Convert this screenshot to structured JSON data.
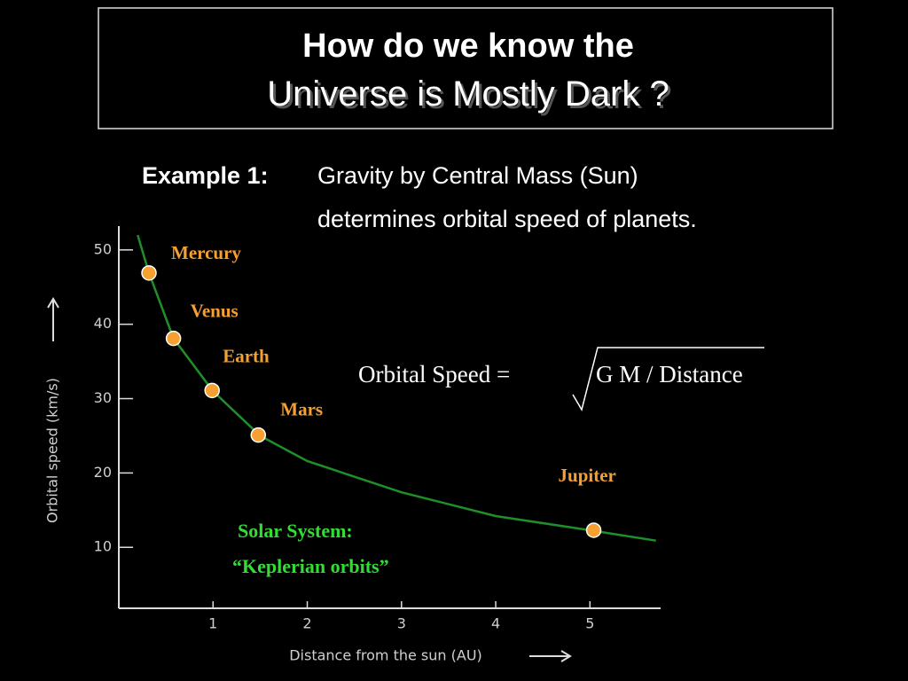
{
  "slide": {
    "title_lines": [
      "How do we know the",
      "Universe is Mostly Dark ?"
    ],
    "example_label": "Example 1:",
    "example_lines": [
      "Gravity by Central Mass (Sun)",
      "determines orbital speed of planets."
    ],
    "formula_left": "Orbital Speed  =",
    "formula_radicand": "G M / Distance"
  },
  "chart_data": {
    "type": "scatter",
    "x_label": "Distance from the sun (AU)",
    "y_label": "Orbital speed (km/s)",
    "xlim": [
      0,
      5.75
    ],
    "ylim": [
      1.8,
      53.2
    ],
    "xticks": [
      1,
      2,
      3,
      4,
      5
    ],
    "yticks": [
      10,
      20,
      30,
      40,
      50
    ],
    "series": [
      {
        "labels": [
          "Mercury",
          "Venus",
          "Earth",
          "Mars",
          "Jupiter"
        ],
        "color": "#f5a030",
        "x": [
          0.32,
          0.58,
          0.99,
          1.48,
          5.04
        ],
        "values": [
          46.9,
          38.1,
          31.1,
          25.1,
          12.3
        ]
      },
      {
        "type": "line",
        "color": "#1f8f2a",
        "x": [
          0.2,
          0.32,
          0.58,
          1.0,
          1.5,
          2.0,
          3.0,
          4.0,
          5.0,
          5.7
        ],
        "values": [
          52,
          46.9,
          38.1,
          31,
          25,
          21.6,
          17.4,
          14.2,
          12.3,
          10.9
        ]
      }
    ],
    "annotations": [
      "Solar System:",
      "“Keplerian orbits”"
    ]
  }
}
